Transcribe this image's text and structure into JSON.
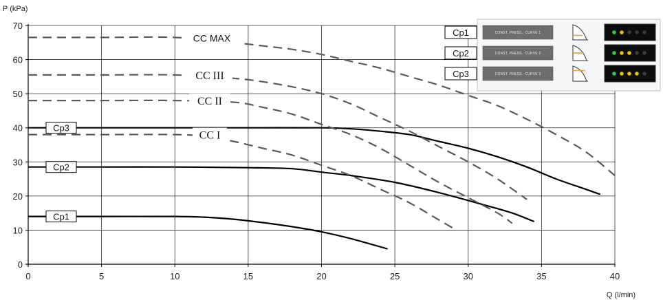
{
  "chart_data": {
    "type": "line",
    "xlabel": "Q (l/min)",
    "ylabel": "P (kPa)",
    "xlim": [
      0,
      40
    ],
    "ylim": [
      0,
      70
    ],
    "xticks": [
      "0",
      "5",
      "10",
      "15",
      "20",
      "25",
      "30",
      "35",
      "40"
    ],
    "yticks": [
      "0",
      "10",
      "20",
      "30",
      "40",
      "50",
      "60",
      "70"
    ],
    "grid": true,
    "series": [
      {
        "name": "Cp1",
        "style": "solid",
        "label_style": "box",
        "points": [
          [
            0,
            14
          ],
          [
            5,
            14
          ],
          [
            10,
            14
          ],
          [
            12,
            13.8
          ],
          [
            14,
            13.2
          ],
          [
            16,
            12.2
          ],
          [
            18,
            11
          ],
          [
            20,
            9.5
          ],
          [
            22,
            7.5
          ],
          [
            24.5,
            4.5
          ]
        ]
      },
      {
        "name": "Cp2",
        "style": "solid",
        "label_style": "box",
        "points": [
          [
            0,
            28.5
          ],
          [
            5,
            28.5
          ],
          [
            10,
            28.5
          ],
          [
            15,
            28.3
          ],
          [
            18,
            28
          ],
          [
            20,
            27
          ],
          [
            22,
            26
          ],
          [
            25,
            24
          ],
          [
            28,
            21
          ],
          [
            31,
            17.5
          ],
          [
            33,
            15
          ],
          [
            34.5,
            12.5
          ]
        ]
      },
      {
        "name": "Cp3",
        "style": "solid",
        "label_style": "box",
        "points": [
          [
            0,
            40
          ],
          [
            5,
            40
          ],
          [
            10,
            40
          ],
          [
            15,
            40
          ],
          [
            20,
            40
          ],
          [
            22,
            39.7
          ],
          [
            24,
            39
          ],
          [
            26,
            38
          ],
          [
            28,
            36
          ],
          [
            30,
            34
          ],
          [
            32,
            31.5
          ],
          [
            34,
            28.5
          ],
          [
            36,
            25
          ],
          [
            38,
            22
          ],
          [
            39,
            20.5
          ]
        ]
      },
      {
        "name": "CC I",
        "style": "dashed",
        "label_style": "serif",
        "points": [
          [
            0,
            38
          ],
          [
            5,
            38
          ],
          [
            10,
            38
          ],
          [
            12,
            37.5
          ],
          [
            14,
            36
          ],
          [
            16,
            34
          ],
          [
            18,
            32
          ],
          [
            20,
            29
          ],
          [
            22,
            26
          ],
          [
            24,
            22
          ],
          [
            26,
            18
          ],
          [
            28,
            13
          ],
          [
            29,
            10.5
          ]
        ]
      },
      {
        "name": "CC II",
        "style": "dashed",
        "label_style": "serif",
        "points": [
          [
            0,
            48
          ],
          [
            5,
            48
          ],
          [
            10,
            48
          ],
          [
            14,
            47.5
          ],
          [
            16,
            46
          ],
          [
            18,
            44
          ],
          [
            20,
            41
          ],
          [
            22,
            38
          ],
          [
            24,
            34
          ],
          [
            26,
            29
          ],
          [
            28,
            24
          ],
          [
            30,
            19.5
          ],
          [
            32,
            15
          ],
          [
            33,
            12
          ]
        ]
      },
      {
        "name": "CC III",
        "style": "dashed",
        "label_style": "serif",
        "points": [
          [
            0,
            55.5
          ],
          [
            5,
            55.5
          ],
          [
            10,
            55.5
          ],
          [
            14,
            54.5
          ],
          [
            16,
            53.5
          ],
          [
            18,
            52
          ],
          [
            20,
            50
          ],
          [
            22,
            47
          ],
          [
            24,
            43
          ],
          [
            26,
            39
          ],
          [
            28,
            34.5
          ],
          [
            30,
            30
          ],
          [
            32,
            25
          ],
          [
            34,
            19
          ]
        ]
      },
      {
        "name": "CC MAX",
        "style": "dashed",
        "label_style": "sans",
        "points": [
          [
            0,
            66.5
          ],
          [
            5,
            66.5
          ],
          [
            10,
            66.5
          ],
          [
            14,
            65
          ],
          [
            16,
            64
          ],
          [
            18,
            63
          ],
          [
            20,
            61.5
          ],
          [
            22,
            59.5
          ],
          [
            24,
            57.5
          ],
          [
            26,
            55
          ],
          [
            28,
            52.5
          ],
          [
            30,
            49.5
          ],
          [
            32,
            46.5
          ],
          [
            34,
            42.5
          ],
          [
            36,
            38
          ],
          [
            38,
            33
          ],
          [
            40,
            26
          ]
        ]
      }
    ],
    "legend": {
      "placement": "top-right",
      "rows": [
        {
          "code": "Cp1",
          "mode": "CONST. PRESS.: CURVE 1",
          "leds_on": 1,
          "led_color": "#f2c200"
        },
        {
          "code": "Cp2",
          "mode": "CONST. PRESS.: CURVE 2",
          "leds_on": 2,
          "led_color": "#f2c200"
        },
        {
          "code": "Cp3",
          "mode": "CONST. PRESS.: CURVE 3",
          "leds_on": 3,
          "led_color": "#f2c200"
        }
      ],
      "led_count": 5,
      "led_first_color": "#2ecc40"
    }
  }
}
